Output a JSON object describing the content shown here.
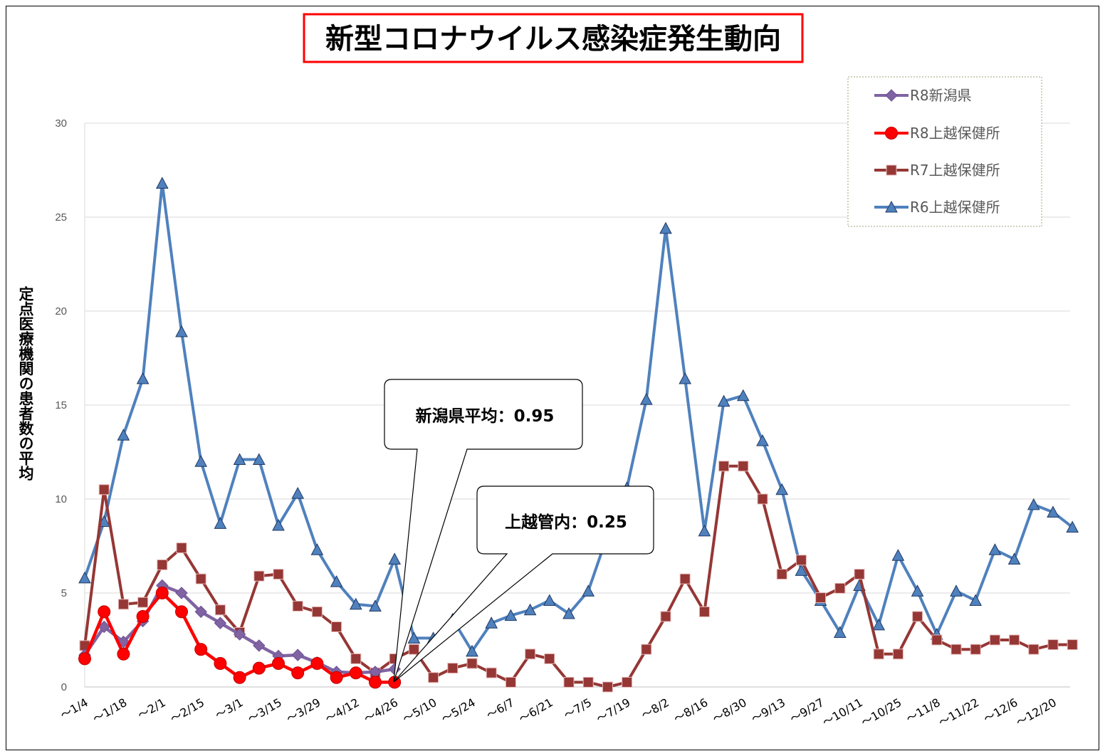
{
  "chart_data": {
    "type": "line",
    "title": "新型コロナウイルス感染症発生動向",
    "ylabel": "定点医療機関の患者数の平均",
    "xlabel": "",
    "ylim": [
      0,
      30
    ],
    "yticks": [
      0,
      5,
      10,
      15,
      20,
      25,
      30
    ],
    "grid": true,
    "legend_position": "top-right",
    "x_labels": [
      "～1/4",
      "～1/18",
      "～2/1",
      "～2/15",
      "～3/1",
      "～3/15",
      "～3/29",
      "～4/12",
      "～4/26",
      "～5/10",
      "～5/24",
      "～6/7",
      "～6/21",
      "～7/5",
      "～7/19",
      "～8/2",
      "～8/16",
      "～8/30",
      "～9/13",
      "～9/27",
      "～10/11",
      "～10/25",
      "～11/8",
      "～11/22",
      "～12/6",
      "～12/20"
    ],
    "series": [
      {
        "name": "R8新潟県",
        "color": "#8064A2",
        "marker": "diamond",
        "values": [
          1.7,
          3.2,
          2.4,
          3.5,
          5.4,
          5.0,
          4.0,
          3.4,
          2.8,
          2.2,
          1.65,
          1.7,
          1.3,
          0.8,
          0.75,
          0.8,
          0.95
        ]
      },
      {
        "name": "R8上越保健所",
        "color": "#FF0000",
        "marker": "circle",
        "values": [
          1.5,
          4.0,
          1.75,
          3.75,
          5.0,
          4.0,
          2.0,
          1.25,
          0.5,
          1.0,
          1.25,
          0.75,
          1.25,
          0.5,
          0.75,
          0.25,
          0.25
        ]
      },
      {
        "name": "R7上越保健所",
        "color": "#953735",
        "marker": "square",
        "values": [
          2.2,
          10.5,
          4.4,
          4.5,
          6.5,
          7.4,
          5.75,
          4.1,
          2.9,
          5.9,
          6.0,
          4.3,
          4.0,
          3.2,
          1.5,
          0.75,
          1.5,
          2.0,
          0.5,
          1.0,
          1.25,
          0.75,
          0.25,
          1.75,
          1.5,
          0.25,
          0.25,
          0.0,
          0.25,
          2.0,
          3.75,
          5.75,
          4.0,
          11.75,
          11.75,
          10.0,
          6.0,
          6.75,
          4.75,
          5.25,
          6.0,
          1.75,
          1.75,
          3.75,
          2.5,
          2.0,
          2.0,
          2.5,
          2.5,
          2.0,
          2.25,
          2.25
        ]
      },
      {
        "name": "R6上越保健所",
        "color": "#4F81BD",
        "marker": "triangle",
        "values": [
          5.8,
          8.8,
          13.4,
          16.4,
          26.8,
          18.9,
          12.0,
          8.7,
          12.1,
          12.1,
          8.6,
          10.3,
          7.3,
          5.6,
          4.4,
          4.3,
          6.8,
          2.6,
          2.6,
          3.6,
          1.9,
          3.4,
          3.8,
          4.1,
          4.6,
          3.9,
          5.1,
          8.1,
          10.6,
          15.3,
          24.4,
          16.4,
          8.3,
          15.2,
          15.5,
          13.1,
          10.5,
          6.2,
          4.6,
          2.9,
          5.4,
          3.3,
          7.0,
          5.1,
          2.8,
          5.1,
          4.6,
          7.3,
          6.8,
          9.7,
          9.3,
          8.5
        ]
      }
    ],
    "annotations": [
      {
        "text": "新潟県平均：0.95"
      },
      {
        "text": "上越管内：0.25"
      }
    ]
  }
}
